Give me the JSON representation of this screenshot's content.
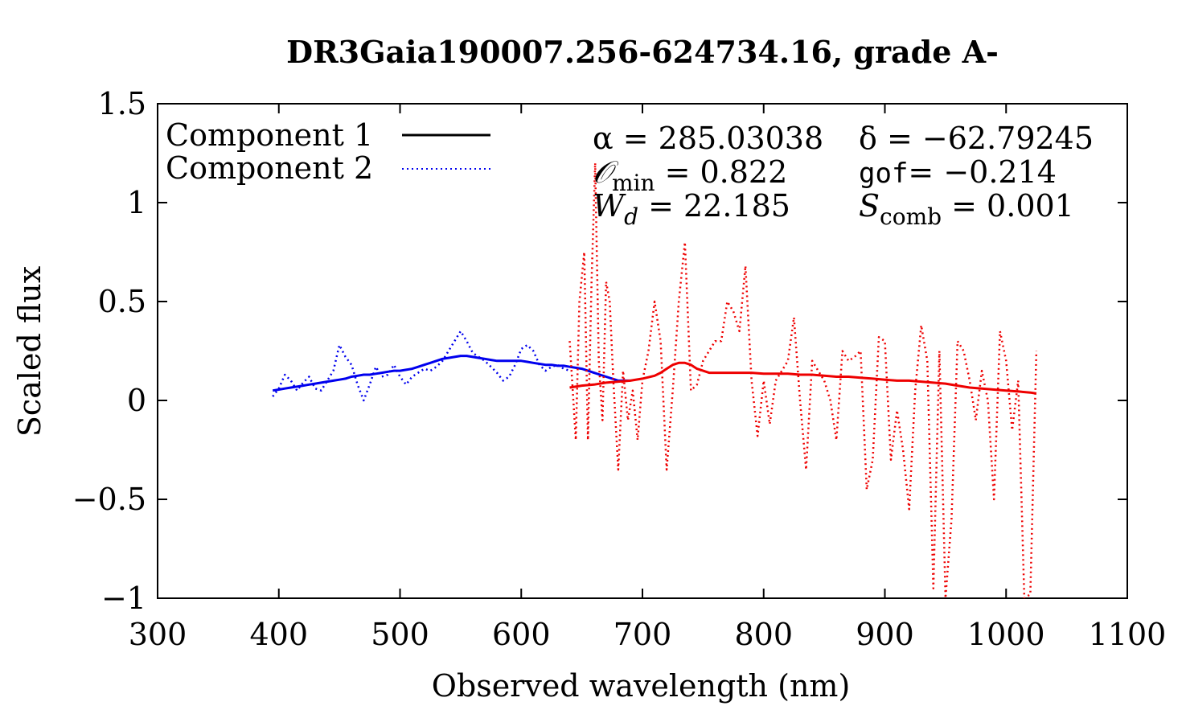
{
  "chart_data": {
    "type": "line",
    "title": "DR3Gaia190007.256-624734.16, grade A-",
    "xlabel": "Observed wavelength (nm)",
    "ylabel": "Scaled flux",
    "xlim": [
      300,
      1100
    ],
    "ylim": [
      -1,
      1.5
    ],
    "x_ticks": [
      300,
      400,
      500,
      600,
      700,
      800,
      900,
      1000,
      1100
    ],
    "x_tick_labels": [
      "300",
      "400",
      "500",
      "600",
      "700",
      "800",
      "900",
      "1000",
      "1100"
    ],
    "y_ticks": [
      -1,
      -0.5,
      0,
      0.5,
      1,
      1.5
    ],
    "y_tick_labels": [
      "−1",
      "−0.5",
      "0",
      "0.5",
      "1",
      "1.5"
    ],
    "grid": false,
    "legend_position": "top-left",
    "legend": [
      {
        "label": "Component 1",
        "style": "solid",
        "color": "#000000"
      },
      {
        "label": "Component 2",
        "style": "dotted",
        "color": "#0000ff"
      }
    ],
    "annotations": {
      "alpha_label": "α = 285.03038",
      "delta_label": "δ = −62.79245",
      "omin_symbol": "𝒪",
      "omin_sub": "min",
      "omin_value": " = 0.822",
      "gof_word": "gof",
      "gof_value": "= −0.214",
      "wd_symbol": "W",
      "wd_sub": "d",
      "wd_value": " = 22.185",
      "scomb_symbol": "S",
      "scomb_sub": "comb",
      "scomb_value": " = 0.001"
    },
    "series": [
      {
        "name": "Component 1 (blue)",
        "style": "solid",
        "color": "#0000ee",
        "x": [
          395,
          400,
          405,
          410,
          415,
          420,
          425,
          430,
          435,
          440,
          445,
          450,
          455,
          460,
          465,
          470,
          475,
          480,
          485,
          490,
          495,
          500,
          505,
          510,
          515,
          520,
          525,
          530,
          535,
          540,
          545,
          550,
          555,
          560,
          565,
          570,
          575,
          580,
          585,
          590,
          595,
          600,
          605,
          610,
          615,
          620,
          625,
          630,
          635,
          640,
          645,
          650,
          655,
          660,
          665,
          670,
          675,
          680,
          685,
          690
        ],
        "y": [
          0.05,
          0.055,
          0.06,
          0.065,
          0.07,
          0.075,
          0.08,
          0.085,
          0.09,
          0.095,
          0.1,
          0.105,
          0.11,
          0.12,
          0.125,
          0.13,
          0.13,
          0.135,
          0.14,
          0.145,
          0.15,
          0.15,
          0.155,
          0.16,
          0.17,
          0.18,
          0.19,
          0.2,
          0.21,
          0.215,
          0.22,
          0.225,
          0.225,
          0.22,
          0.215,
          0.21,
          0.205,
          0.2,
          0.2,
          0.2,
          0.2,
          0.2,
          0.195,
          0.19,
          0.185,
          0.18,
          0.18,
          0.175,
          0.175,
          0.17,
          0.165,
          0.16,
          0.15,
          0.14,
          0.13,
          0.12,
          0.11,
          0.1,
          0.1,
          0.1
        ]
      },
      {
        "name": "Component 2 (blue)",
        "style": "dotted",
        "color": "#0000ee",
        "x": [
          395,
          400,
          405,
          410,
          415,
          420,
          425,
          430,
          435,
          440,
          445,
          450,
          455,
          460,
          465,
          470,
          475,
          480,
          485,
          490,
          495,
          500,
          505,
          510,
          515,
          520,
          525,
          530,
          535,
          540,
          545,
          550,
          555,
          560,
          565,
          570,
          575,
          580,
          585,
          590,
          595,
          600,
          605,
          610,
          615,
          620,
          625,
          630,
          635,
          640
        ],
        "y": [
          0.02,
          0.06,
          0.13,
          0.1,
          0.05,
          0.09,
          0.12,
          0.06,
          0.05,
          0.1,
          0.15,
          0.28,
          0.22,
          0.18,
          0.08,
          0.0,
          0.08,
          0.17,
          0.12,
          0.13,
          0.18,
          0.12,
          0.08,
          0.12,
          0.14,
          0.16,
          0.15,
          0.17,
          0.2,
          0.25,
          0.3,
          0.35,
          0.3,
          0.24,
          0.22,
          0.2,
          0.17,
          0.14,
          0.1,
          0.12,
          0.18,
          0.26,
          0.28,
          0.25,
          0.18,
          0.15,
          0.17,
          0.18,
          0.16,
          0.15
        ]
      },
      {
        "name": "Component 1 (red)",
        "style": "solid",
        "color": "#ee0000",
        "x": [
          640,
          650,
          660,
          670,
          680,
          690,
          700,
          710,
          715,
          720,
          725,
          730,
          735,
          740,
          745,
          750,
          755,
          760,
          770,
          780,
          790,
          800,
          810,
          820,
          830,
          840,
          850,
          860,
          870,
          880,
          890,
          900,
          910,
          920,
          930,
          940,
          950,
          960,
          970,
          980,
          990,
          1000,
          1010,
          1020,
          1025
        ],
        "y": [
          0.065,
          0.075,
          0.08,
          0.09,
          0.095,
          0.1,
          0.11,
          0.125,
          0.14,
          0.16,
          0.18,
          0.19,
          0.19,
          0.18,
          0.16,
          0.15,
          0.14,
          0.14,
          0.14,
          0.14,
          0.14,
          0.135,
          0.135,
          0.135,
          0.13,
          0.13,
          0.125,
          0.12,
          0.12,
          0.115,
          0.11,
          0.105,
          0.1,
          0.1,
          0.095,
          0.09,
          0.085,
          0.075,
          0.065,
          0.06,
          0.055,
          0.05,
          0.045,
          0.04,
          0.035
        ]
      },
      {
        "name": "Component 2 (red)",
        "style": "dotted",
        "color": "#ee0000",
        "x": [
          640,
          645,
          648,
          652,
          655,
          658,
          661,
          664,
          667,
          670,
          673,
          676,
          680,
          684,
          688,
          692,
          696,
          700,
          705,
          710,
          715,
          720,
          725,
          730,
          735,
          740,
          745,
          750,
          755,
          760,
          765,
          770,
          775,
          780,
          785,
          790,
          795,
          800,
          805,
          810,
          815,
          820,
          825,
          830,
          835,
          840,
          845,
          850,
          855,
          860,
          865,
          870,
          875,
          880,
          885,
          890,
          895,
          900,
          905,
          910,
          915,
          920,
          925,
          930,
          935,
          940,
          945,
          950,
          955,
          960,
          965,
          970,
          975,
          980,
          985,
          990,
          995,
          1000,
          1005,
          1010,
          1015,
          1020,
          1025
        ],
        "y": [
          0.3,
          -0.2,
          0.5,
          0.75,
          -0.2,
          0.6,
          1.2,
          0.2,
          -0.1,
          0.6,
          0.5,
          0.1,
          -0.35,
          0.15,
          -0.1,
          0.05,
          -0.2,
          0.1,
          0.25,
          0.5,
          0.3,
          -0.35,
          0.05,
          0.5,
          0.8,
          0.05,
          0.08,
          0.2,
          0.25,
          0.3,
          0.3,
          0.5,
          0.45,
          0.35,
          0.68,
          0.1,
          -0.18,
          0.1,
          -0.12,
          0.1,
          0.15,
          0.2,
          0.42,
          0.0,
          -0.35,
          0.2,
          0.15,
          0.1,
          0.0,
          -0.2,
          0.25,
          0.2,
          0.22,
          0.25,
          -0.45,
          -0.3,
          0.32,
          0.3,
          -0.3,
          -0.05,
          -0.25,
          -0.55,
          0.05,
          0.38,
          0.2,
          -0.95,
          0.25,
          -1.0,
          -0.6,
          0.3,
          0.25,
          0.1,
          -0.1,
          0.15,
          0.0,
          -0.5,
          0.35,
          0.2,
          -0.15,
          0.1,
          -1.0,
          -0.98,
          0.25
        ]
      }
    ]
  }
}
